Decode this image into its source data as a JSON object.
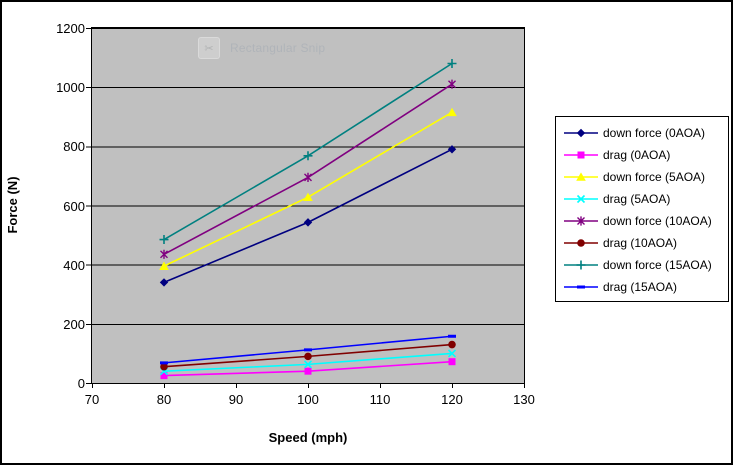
{
  "overlay": {
    "snip_label": "Rectangular Snip"
  },
  "chart_data": {
    "type": "line",
    "title": "",
    "xlabel": "Speed (mph)",
    "ylabel": "Force (N)",
    "x": [
      80,
      100,
      120
    ],
    "xlim": [
      70,
      130
    ],
    "ylim": [
      0,
      1200
    ],
    "xticks": [
      70,
      80,
      90,
      100,
      110,
      120,
      130
    ],
    "yticks": [
      0,
      200,
      400,
      600,
      800,
      1000,
      1200
    ],
    "grid": "on",
    "plot_background": "#c0c0c0",
    "legend_position": "right",
    "series": [
      {
        "name": "down force (0AOA)",
        "color": "#000080",
        "marker": "diamond",
        "values": [
          340,
          543,
          790
        ]
      },
      {
        "name": "drag (0AOA)",
        "color": "#ff00ff",
        "marker": "square",
        "values": [
          25,
          40,
          72
        ]
      },
      {
        "name": "down force (5AOA)",
        "color": "#ffff00",
        "marker": "triangle",
        "values": [
          395,
          628,
          915
        ]
      },
      {
        "name": "drag (5AOA)",
        "color": "#00ffff",
        "marker": "x",
        "values": [
          40,
          63,
          100
        ]
      },
      {
        "name": "down force (10AOA)",
        "color": "#800080",
        "marker": "asterisk",
        "values": [
          435,
          695,
          1010
        ]
      },
      {
        "name": "drag (10AOA)",
        "color": "#800000",
        "marker": "circle",
        "values": [
          55,
          90,
          130
        ]
      },
      {
        "name": "down force (15AOA)",
        "color": "#008080",
        "marker": "plus",
        "values": [
          485,
          768,
          1080
        ]
      },
      {
        "name": "drag (15AOA)",
        "color": "#0000ff",
        "marker": "dash",
        "values": [
          68,
          112,
          158
        ]
      }
    ]
  }
}
